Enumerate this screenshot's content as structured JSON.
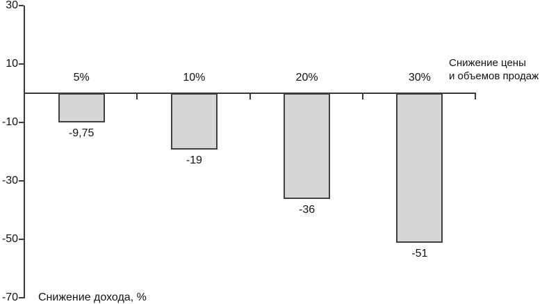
{
  "chart_data": {
    "type": "bar",
    "categories": [
      "5%",
      "10%",
      "20%",
      "30%"
    ],
    "values": [
      -9.75,
      -19,
      -36,
      -51
    ],
    "value_labels": [
      "-9,75",
      "-19",
      "-36",
      "-51"
    ],
    "y_ticks": [
      30,
      10,
      -10,
      -30,
      -50,
      -70
    ],
    "ylim": [
      -70,
      30
    ],
    "ylabel": "Снижение дохода, %",
    "annotation": {
      "lines": [
        "Снижение цены",
        "и объемов продаж"
      ]
    },
    "title": "",
    "legend_position": "none",
    "grid": false,
    "colors": {
      "bar_fill": "#d6d6d6",
      "bar_border": "#3f3f3f",
      "axis": "#3a3a3a",
      "text": "#111111",
      "background": "#ffffff"
    }
  }
}
